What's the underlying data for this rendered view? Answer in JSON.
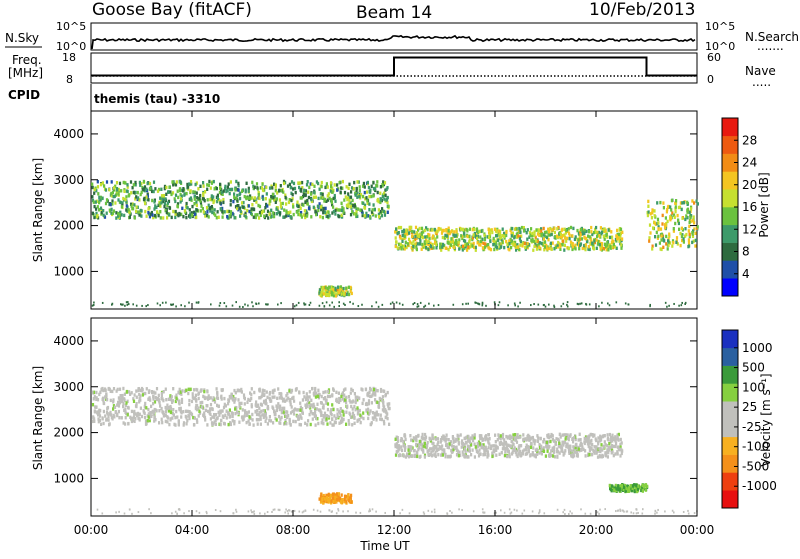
{
  "header": {
    "station": "Goose Bay (fitACF)",
    "beam": "Beam 14",
    "date": "10/Feb/2013"
  },
  "panels": {
    "nsky": {
      "left_label": "N.Sky",
      "left_top": "10^5",
      "left_bottom": "10^0",
      "right_top": "10^5",
      "right_bottom": "10^0",
      "right_label": "N.Search",
      "right_dots": "......."
    },
    "freq": {
      "left_label_1": "Freq.",
      "left_label_2": "[MHz]",
      "left_top": "18",
      "left_bottom": "8",
      "right_top": "60",
      "right_bottom": "0",
      "right_label": "Nave",
      "right_dots": "....."
    },
    "cpid": {
      "label": "CPID",
      "value": "themis (tau) -3310"
    }
  },
  "power_panel": {
    "y_title": "Slant Range [km]",
    "cbar_label": "Power [dB]",
    "cbar_ticks": [
      "28",
      "24",
      "20",
      "16",
      "12",
      "8",
      "4"
    ],
    "cbar_colors": [
      "#0000ff",
      "#1f4fa8",
      "#2e6b3f",
      "#3d9a6a",
      "#6bc23f",
      "#c6e030",
      "#f4c521",
      "#f28c15",
      "#ee5a10",
      "#e81a10"
    ]
  },
  "velocity_panel": {
    "y_title": "Slant Range [km]",
    "cbar_label": "Velocity [m s⁻¹]",
    "cbar_ticks": [
      "1000",
      "500",
      "100",
      "25",
      "-25",
      "-100",
      "-500",
      "-1000"
    ],
    "cbar_colors": [
      "#e81010",
      "#ee4010",
      "#f4901a",
      "#f7b020",
      "#c0c0bc",
      "#c0c0bc",
      "#86d040",
      "#3a9a3a",
      "#2a60a0",
      "#1a30c0"
    ]
  },
  "x_axis": {
    "title": "Time UT",
    "ticks": [
      "00:00",
      "04:00",
      "08:00",
      "12:00",
      "16:00",
      "20:00",
      "00:00"
    ]
  },
  "y_ticks": [
    "1000",
    "2000",
    "3000",
    "4000"
  ],
  "chart_data": {
    "type": "heatmap",
    "title": "Goose Bay (fitACF) Beam 14 10/Feb/2013",
    "xlabel": "Time UT",
    "ylabel": "Slant Range [km]",
    "xlim_hours": [
      0,
      24
    ],
    "ylim_km": [
      180,
      4500
    ],
    "frequency_mhz": {
      "segments": [
        {
          "start": 0,
          "end": 12,
          "value": 10.5
        },
        {
          "start": 12,
          "end": 22,
          "value": 16.5
        },
        {
          "start": 22,
          "end": 24,
          "value": 10.5
        }
      ]
    },
    "power_echoes": [
      {
        "region": "arc",
        "t_start": 0.0,
        "t_end": 11.8,
        "range_km": [
          2200,
          3000
        ],
        "power_db": 10
      },
      {
        "region": "post-noon band",
        "t_start": 12.0,
        "t_end": 21.0,
        "range_km": [
          1500,
          2000
        ],
        "power_db": 14
      },
      {
        "region": "near range",
        "t_start": 9.0,
        "t_end": 10.3,
        "range_km": [
          500,
          700
        ],
        "power_db": 14
      },
      {
        "region": "late",
        "t_start": 22.0,
        "t_end": 24.0,
        "range_km": [
          1500,
          2600
        ],
        "power_db": 14
      }
    ],
    "velocity_echoes": [
      {
        "region": "arc",
        "t_start": 0.0,
        "t_end": 11.8,
        "range_km": [
          2200,
          3000
        ],
        "velocity_ms": 0
      },
      {
        "region": "post-noon band",
        "t_start": 12.0,
        "t_end": 21.0,
        "range_km": [
          1500,
          2000
        ],
        "velocity_ms": 0
      },
      {
        "region": "near range",
        "t_start": 9.0,
        "t_end": 10.3,
        "range_km": [
          500,
          700
        ],
        "velocity_ms": -150
      },
      {
        "region": "late",
        "t_start": 20.5,
        "t_end": 22.0,
        "range_km": [
          750,
          900
        ],
        "velocity_ms": 80
      }
    ]
  }
}
